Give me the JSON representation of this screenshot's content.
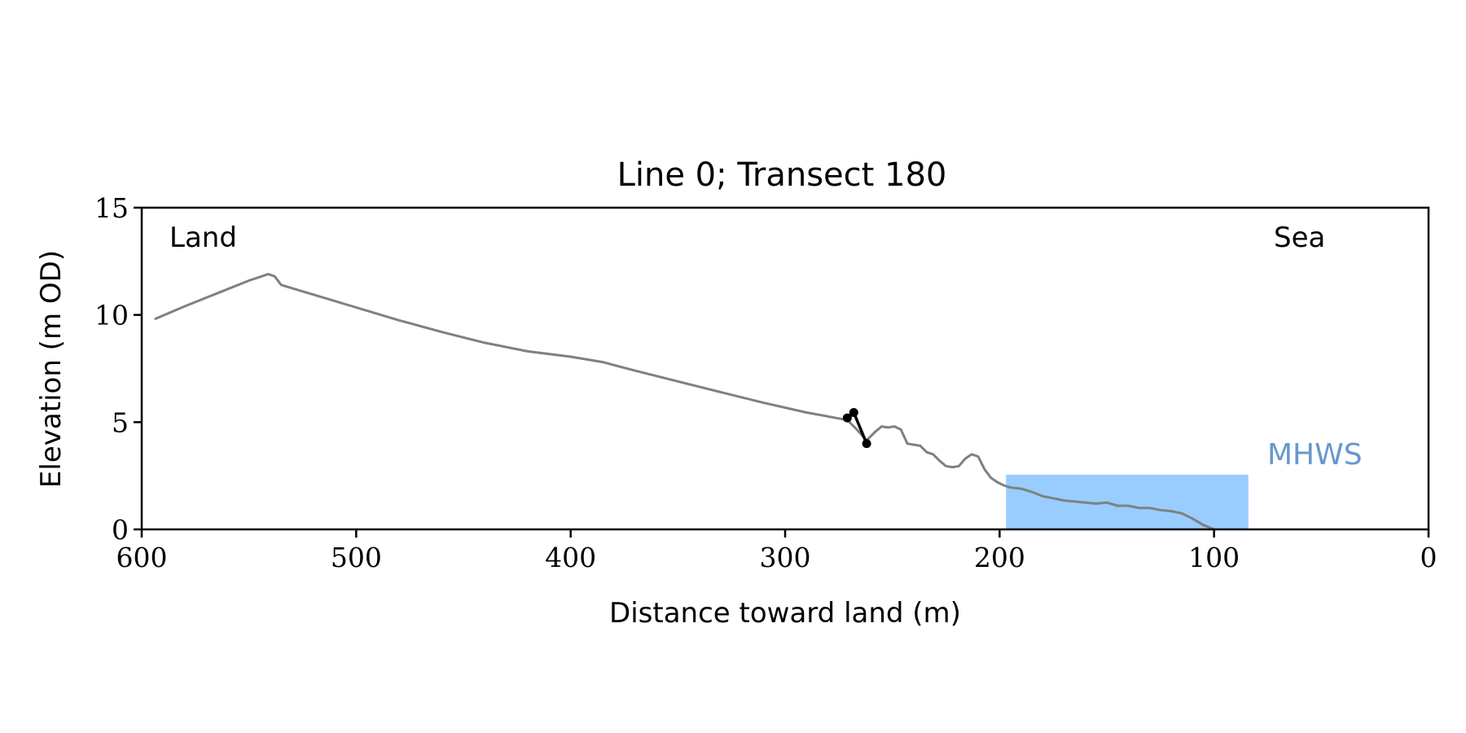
{
  "chart_data": {
    "type": "line",
    "title": "Line 0; Transect 180",
    "xlabel": "Distance toward land (m)",
    "ylabel": "Elevation (m OD)",
    "xlim": [
      600,
      0
    ],
    "ylim": [
      0,
      15
    ],
    "x_ticks": [
      600,
      500,
      400,
      300,
      200,
      100,
      0
    ],
    "y_ticks": [
      0,
      5,
      10,
      15
    ],
    "grid": false,
    "annotations": {
      "land": "Land",
      "sea": "Sea",
      "mhws": "MHWS"
    },
    "colors": {
      "profile": "#808080",
      "cliff": "#000000",
      "mhws_fill": "#99ccff",
      "mhws_text": "#6699cc"
    },
    "mhws_region": {
      "x_start": 197,
      "x_end": 84,
      "level": 2.55
    },
    "series": [
      {
        "key": "profile",
        "x": [
          594,
          580,
          565,
          550,
          541,
          538,
          535,
          520,
          500,
          480,
          460,
          440,
          420,
          400,
          385,
          370,
          350,
          330,
          310,
          290,
          271,
          267,
          262,
          258,
          255,
          252,
          249,
          246,
          243,
          240,
          237,
          234,
          231,
          228,
          225,
          222,
          219,
          216,
          213,
          210,
          207,
          204,
          201,
          198,
          195,
          190,
          185,
          180,
          175,
          170,
          165,
          160,
          155,
          150,
          145,
          140,
          135,
          130,
          125,
          120,
          115,
          110,
          105,
          100
        ],
        "y": [
          9.8,
          10.4,
          11.0,
          11.6,
          11.9,
          11.8,
          11.4,
          10.95,
          10.35,
          9.75,
          9.2,
          8.7,
          8.3,
          8.05,
          7.8,
          7.4,
          6.9,
          6.4,
          5.9,
          5.45,
          5.1,
          4.7,
          4.15,
          4.55,
          4.8,
          4.75,
          4.8,
          4.65,
          4.0,
          3.95,
          3.9,
          3.6,
          3.5,
          3.2,
          2.95,
          2.9,
          2.95,
          3.3,
          3.5,
          3.4,
          2.8,
          2.4,
          2.2,
          2.05,
          1.95,
          1.9,
          1.75,
          1.55,
          1.45,
          1.35,
          1.3,
          1.25,
          1.2,
          1.25,
          1.1,
          1.1,
          1.0,
          1.0,
          0.9,
          0.85,
          0.75,
          0.5,
          0.2,
          0.0
        ]
      },
      {
        "key": "cliff",
        "x": [
          271,
          268,
          262
        ],
        "y": [
          5.2,
          5.45,
          4.0
        ]
      }
    ]
  }
}
